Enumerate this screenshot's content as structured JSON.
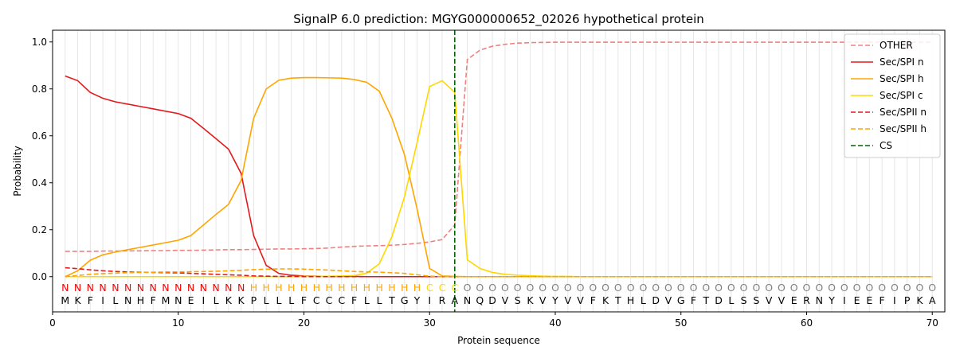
{
  "chart_data": {
    "type": "line",
    "title": "SignalP 6.0 prediction: MGYG000000652_02026 hypothetical protein",
    "xlabel": "Protein sequence",
    "ylabel": "Probability",
    "xlim": [
      0,
      71
    ],
    "ylim": [
      -0.15,
      1.05
    ],
    "xticks": [
      0,
      10,
      20,
      30,
      40,
      50,
      60,
      70
    ],
    "yticks": [
      0.0,
      0.2,
      0.4,
      0.6,
      0.8,
      1.0
    ],
    "grid": "vertical lines at each residue",
    "legend_placement": "top-right",
    "sequence": [
      "M",
      "K",
      "F",
      "I",
      "L",
      "N",
      "H",
      "F",
      "M",
      "N",
      "E",
      "I",
      "L",
      "K",
      "K",
      "P",
      "L",
      "L",
      "L",
      "F",
      "C",
      "C",
      "C",
      "F",
      "L",
      "L",
      "T",
      "G",
      "Y",
      "I",
      "R",
      "A",
      "N",
      "Q",
      "D",
      "V",
      "S",
      "K",
      "V",
      "Y",
      "V",
      "V",
      "F",
      "K",
      "T",
      "H",
      "L",
      "D",
      "V",
      "G",
      "F",
      "T",
      "D",
      "L",
      "S",
      "S",
      "V",
      "V",
      "E",
      "R",
      "N",
      "Y",
      "I",
      "E",
      "E",
      "F",
      "I",
      "P",
      "K",
      "A"
    ],
    "region_labels": [
      "N",
      "N",
      "N",
      "N",
      "N",
      "N",
      "N",
      "N",
      "N",
      "N",
      "N",
      "N",
      "N",
      "N",
      "N",
      "H",
      "H",
      "H",
      "H",
      "H",
      "H",
      "H",
      "H",
      "H",
      "H",
      "H",
      "H",
      "H",
      "H",
      "C",
      "C",
      "C",
      "O",
      "O",
      "O",
      "O",
      "O",
      "O",
      "O",
      "O",
      "O",
      "O",
      "O",
      "O",
      "O",
      "O",
      "O",
      "O",
      "O",
      "O",
      "O",
      "O",
      "O",
      "O",
      "O",
      "O",
      "O",
      "O",
      "O",
      "O",
      "O",
      "O",
      "O",
      "O",
      "O",
      "O",
      "O",
      "O",
      "O",
      "O"
    ],
    "region_colors": {
      "N": "#ff0000",
      "H": "#ffa500",
      "C": "#ffd700",
      "O": "#808080"
    },
    "cleavage_site": 32,
    "series": [
      {
        "name": "OTHER",
        "color": "#f08080",
        "dash": "dashed",
        "values": [
          0.108,
          0.108,
          0.108,
          0.109,
          0.109,
          0.11,
          0.11,
          0.111,
          0.111,
          0.112,
          0.112,
          0.113,
          0.114,
          0.115,
          0.115,
          0.116,
          0.117,
          0.118,
          0.118,
          0.119,
          0.12,
          0.122,
          0.126,
          0.129,
          0.131,
          0.132,
          0.134,
          0.137,
          0.142,
          0.148,
          0.158,
          0.22,
          0.925,
          0.965,
          0.982,
          0.99,
          0.995,
          0.997,
          0.998,
          0.999,
          0.999,
          0.999,
          0.999,
          0.999,
          0.999,
          0.999,
          0.999,
          0.999,
          0.999,
          0.999,
          0.999,
          0.999,
          0.999,
          0.999,
          0.999,
          0.999,
          0.999,
          0.999,
          0.999,
          0.999,
          0.999,
          0.999,
          0.999,
          0.999,
          0.999,
          0.999,
          0.999,
          0.999,
          0.999,
          0.999
        ]
      },
      {
        "name": "Sec/SPI n",
        "color": "#e31a1c",
        "dash": "solid",
        "values": [
          0.855,
          0.835,
          0.785,
          0.76,
          0.745,
          0.735,
          0.725,
          0.715,
          0.705,
          0.695,
          0.675,
          0.632,
          0.588,
          0.543,
          0.44,
          0.175,
          0.048,
          0.014,
          0.006,
          0.003,
          0.002,
          0.001,
          0.001,
          0.001,
          0.0,
          0.0,
          0.0,
          0.0,
          0.0,
          0.0,
          0.0,
          0.0,
          0.0,
          0.0,
          0.0,
          0.0,
          0.0,
          0.0,
          0.0,
          0.0,
          0.0,
          0.0,
          0.0,
          0.0,
          0.0,
          0.0,
          0.0,
          0.0,
          0.0,
          0.0,
          0.0,
          0.0,
          0.0,
          0.0,
          0.0,
          0.0,
          0.0,
          0.0,
          0.0,
          0.0,
          0.0,
          0.0,
          0.0,
          0.0,
          0.0,
          0.0,
          0.0,
          0.0,
          0.0,
          0.0
        ]
      },
      {
        "name": "Sec/SPI h",
        "color": "#ffa500",
        "dash": "solid",
        "values": [
          0.0,
          0.025,
          0.07,
          0.093,
          0.105,
          0.115,
          0.125,
          0.135,
          0.145,
          0.155,
          0.175,
          0.22,
          0.265,
          0.308,
          0.41,
          0.675,
          0.8,
          0.837,
          0.846,
          0.848,
          0.848,
          0.847,
          0.846,
          0.84,
          0.828,
          0.79,
          0.675,
          0.52,
          0.29,
          0.035,
          0.003,
          0.001,
          0.0,
          0.0,
          0.0,
          0.0,
          0.0,
          0.0,
          0.0,
          0.0,
          0.0,
          0.0,
          0.0,
          0.0,
          0.0,
          0.0,
          0.0,
          0.0,
          0.0,
          0.0,
          0.0,
          0.0,
          0.0,
          0.0,
          0.0,
          0.0,
          0.0,
          0.0,
          0.0,
          0.0,
          0.0,
          0.0,
          0.0,
          0.0,
          0.0,
          0.0,
          0.0,
          0.0,
          0.0,
          0.0
        ]
      },
      {
        "name": "Sec/SPI c",
        "color": "#ffd700",
        "dash": "solid",
        "values": [
          0.0,
          0.0,
          0.0,
          0.0,
          0.0,
          0.0,
          0.0,
          0.0,
          0.0,
          0.0,
          0.0,
          0.0,
          0.0,
          0.0,
          0.0,
          0.0,
          0.0,
          0.0,
          0.0,
          0.001,
          0.001,
          0.002,
          0.003,
          0.005,
          0.015,
          0.055,
          0.17,
          0.34,
          0.57,
          0.81,
          0.835,
          0.785,
          0.072,
          0.035,
          0.018,
          0.01,
          0.006,
          0.004,
          0.002,
          0.001,
          0.001,
          0.0,
          0.0,
          0.0,
          0.0,
          0.0,
          0.0,
          0.0,
          0.0,
          0.0,
          0.0,
          0.0,
          0.0,
          0.0,
          0.0,
          0.0,
          0.0,
          0.0,
          0.0,
          0.0,
          0.0,
          0.0,
          0.0,
          0.0,
          0.0,
          0.0,
          0.0,
          0.0,
          0.0,
          0.0
        ]
      },
      {
        "name": "Sec/SPII n",
        "color": "#e31a1c",
        "dash": "dashed",
        "values": [
          0.038,
          0.034,
          0.029,
          0.025,
          0.022,
          0.02,
          0.019,
          0.018,
          0.017,
          0.016,
          0.014,
          0.012,
          0.01,
          0.008,
          0.006,
          0.003,
          0.002,
          0.001,
          0.001,
          0.0,
          0.0,
          0.0,
          0.0,
          0.0,
          0.0,
          0.0,
          0.0,
          0.0,
          0.0,
          0.0,
          0.0,
          0.0,
          0.0,
          0.0,
          0.0,
          0.0,
          0.0,
          0.0,
          0.0,
          0.0,
          0.0,
          0.0,
          0.0,
          0.0,
          0.0,
          0.0,
          0.0,
          0.0,
          0.0,
          0.0,
          0.0,
          0.0,
          0.0,
          0.0,
          0.0,
          0.0,
          0.0,
          0.0,
          0.0,
          0.0,
          0.0,
          0.0,
          0.0,
          0.0,
          0.0,
          0.0,
          0.0,
          0.0,
          0.0,
          0.0
        ]
      },
      {
        "name": "Sec/SPII h",
        "color": "#ffa500",
        "dash": "dashed",
        "values": [
          0.0,
          0.005,
          0.01,
          0.013,
          0.015,
          0.017,
          0.018,
          0.019,
          0.02,
          0.02,
          0.021,
          0.022,
          0.023,
          0.025,
          0.027,
          0.03,
          0.032,
          0.033,
          0.033,
          0.032,
          0.03,
          0.028,
          0.025,
          0.022,
          0.02,
          0.019,
          0.017,
          0.014,
          0.008,
          0.002,
          0.0,
          0.0,
          0.0,
          0.0,
          0.0,
          0.0,
          0.0,
          0.0,
          0.0,
          0.0,
          0.0,
          0.0,
          0.0,
          0.0,
          0.0,
          0.0,
          0.0,
          0.0,
          0.0,
          0.0,
          0.0,
          0.0,
          0.0,
          0.0,
          0.0,
          0.0,
          0.0,
          0.0,
          0.0,
          0.0,
          0.0,
          0.0,
          0.0,
          0.0,
          0.0,
          0.0,
          0.0,
          0.0,
          0.0,
          0.0
        ]
      }
    ],
    "legend": [
      {
        "label": "OTHER",
        "color": "#f08080",
        "dash": "dashed"
      },
      {
        "label": "Sec/SPI n",
        "color": "#e31a1c",
        "dash": "solid"
      },
      {
        "label": "Sec/SPI h",
        "color": "#ffa500",
        "dash": "solid"
      },
      {
        "label": "Sec/SPI c",
        "color": "#ffd700",
        "dash": "solid"
      },
      {
        "label": "Sec/SPII n",
        "color": "#e31a1c",
        "dash": "dashed"
      },
      {
        "label": "Sec/SPII h",
        "color": "#ffa500",
        "dash": "dashed"
      },
      {
        "label": "CS",
        "color": "#006400",
        "dash": "dashed"
      }
    ]
  }
}
